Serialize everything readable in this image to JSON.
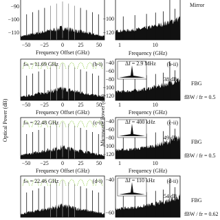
{
  "axis_titles": {
    "left": "Optical Power (dB)",
    "right": "Microwave Power (dB)"
  },
  "top": {
    "left_yticks": [
      "−90",
      "−100",
      "−110"
    ],
    "left_xticks": [
      "−50",
      "−25",
      "0",
      "25",
      "50"
    ],
    "left_xlabel": "Frequency Offset (GHz)",
    "right_yticks": [
      "−100",
      "−120"
    ],
    "right_xticks": [
      "1",
      "10"
    ],
    "right_xlabel": "Frequency (GHz)",
    "right_note": "Mirror"
  },
  "rows": [
    {
      "fm": "fₘ = 11.69 GHz",
      "left_tag": "(b-i)",
      "left_xticks": [
        "−50",
        "−25",
        "0",
        "25",
        "50"
      ],
      "left_xlabel": "Frequency Offset (GHz)",
      "right_tag": "(b-ii)",
      "delta": "Δf = 2.9 MHz",
      "gain": "38 dB",
      "right_yticks": [
        "−40",
        "−60",
        "−80",
        "−100",
        "−120"
      ],
      "right_xticks": [
        "1",
        "10"
      ],
      "right_xlabel": "Frequency (GHz)",
      "filter": "FBG",
      "ratio": "fBW / fr = 0.5"
    },
    {
      "fm": "fₘ = 22.48 GHz",
      "left_tag": "(c-i)",
      "left_xticks": [
        "−50",
        "−25",
        "0",
        "25",
        "50"
      ],
      "left_xlabel": "Frequency Offset (GHz)",
      "right_tag": "(c-ii)",
      "delta": "Δf = 400 kHz",
      "gain": "49 dB",
      "right_yticks": [
        "−40",
        "−60",
        "−80",
        "−100",
        "−120"
      ],
      "right_xticks": [
        "1",
        "10"
      ],
      "right_xlabel": "Frequency (GHz)",
      "filter": "FBG",
      "ratio": "fBW / fr = 0.5"
    },
    {
      "fm": "fₘ = 22.46 GHz",
      "left_tag": "(d-i)",
      "right_tag": "(d-ii)",
      "delta": "Δf = 110 kHz",
      "gain": "54 dB",
      "right_yticks": [
        "−40",
        "−60"
      ],
      "filter": "FBG",
      "ratio": "fBW / fr = 0.62"
    }
  ]
}
